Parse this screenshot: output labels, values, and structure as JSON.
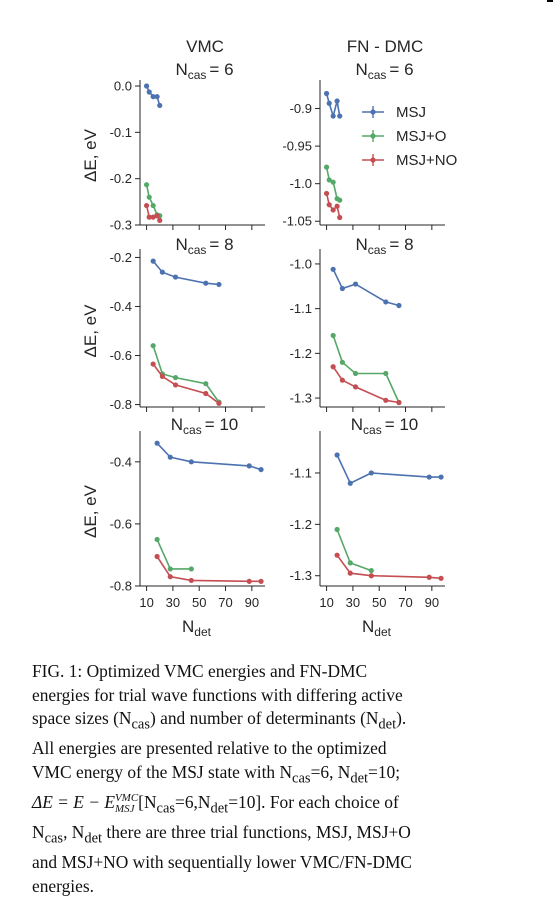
{
  "column_titles": {
    "left": "VMC",
    "right": "FN - DMC"
  },
  "legend": [
    {
      "label": "MSJ",
      "color": "#4c72b0"
    },
    {
      "label": "MSJ+O",
      "color": "#55a868"
    },
    {
      "label": "MSJ+NO",
      "color": "#c44e52"
    }
  ],
  "axis_text": {
    "ylabel": "ΔE, eV",
    "xlabel_main": "N",
    "xlabel_sub": "det",
    "ncas_main": "N",
    "ncas_sub": "cas",
    "ncas_values": [
      "= 6",
      "= 8",
      "= 10"
    ]
  },
  "chart_data": [
    {
      "type": "line",
      "title": "VMC N_cas = 6",
      "row": 0,
      "col": 0,
      "xlim": [
        5,
        100
      ],
      "ylim": [
        -0.3,
        0.0
      ],
      "yticks": [
        0.0,
        -0.1,
        -0.2,
        -0.3
      ],
      "ytick_labels": [
        "0.0",
        "-0.1",
        "-0.2",
        "-0.3"
      ],
      "series": [
        {
          "name": "MSJ",
          "color": "#4c72b0",
          "x": [
            10,
            12,
            15,
            18,
            20
          ],
          "y": [
            0.0,
            -0.013,
            -0.023,
            -0.023,
            -0.042
          ]
        },
        {
          "name": "MSJ+O",
          "color": "#55a868",
          "x": [
            10,
            12,
            15,
            18,
            20
          ],
          "y": [
            -0.213,
            -0.24,
            -0.258,
            -0.278,
            -0.28
          ]
        },
        {
          "name": "MSJ+NO",
          "color": "#c44e52",
          "x": [
            10,
            12,
            15,
            18,
            20
          ],
          "y": [
            -0.258,
            -0.283,
            -0.283,
            -0.28,
            -0.29
          ]
        }
      ]
    },
    {
      "type": "line",
      "title": "FN-DMC N_cas = 6",
      "row": 0,
      "col": 1,
      "xlim": [
        5,
        100
      ],
      "ylim": [
        -1.055,
        -0.87
      ],
      "yticks": [
        -0.9,
        -0.95,
        -1.0,
        -1.05
      ],
      "ytick_labels": [
        "-0.9",
        "-0.95",
        "-1.0",
        "-1.05"
      ],
      "series": [
        {
          "name": "MSJ",
          "color": "#4c72b0",
          "x": [
            10,
            12,
            15,
            18,
            20
          ],
          "y": [
            -0.88,
            -0.893,
            -0.91,
            -0.89,
            -0.91
          ]
        },
        {
          "name": "MSJ+O",
          "color": "#55a868",
          "x": [
            10,
            12,
            15,
            18,
            20
          ],
          "y": [
            -0.978,
            -0.995,
            -0.998,
            -1.02,
            -1.022
          ]
        },
        {
          "name": "MSJ+NO",
          "color": "#c44e52",
          "x": [
            10,
            12,
            15,
            18,
            20
          ],
          "y": [
            -1.013,
            -1.028,
            -1.035,
            -1.03,
            -1.045
          ]
        }
      ]
    },
    {
      "type": "line",
      "title": "VMC N_cas = 8",
      "row": 1,
      "col": 0,
      "xlim": [
        5,
        100
      ],
      "ylim": [
        -0.81,
        -0.19
      ],
      "yticks": [
        -0.2,
        -0.4,
        -0.6,
        -0.8
      ],
      "ytick_labels": [
        "-0.2",
        "-0.4",
        "-0.6",
        "-0.8"
      ],
      "series": [
        {
          "name": "MSJ",
          "color": "#4c72b0",
          "x": [
            15,
            22,
            32,
            55,
            65
          ],
          "y": [
            -0.215,
            -0.26,
            -0.28,
            -0.305,
            -0.31
          ]
        },
        {
          "name": "MSJ+O",
          "color": "#55a868",
          "x": [
            15,
            22,
            32,
            55,
            65
          ],
          "y": [
            -0.56,
            -0.675,
            -0.69,
            -0.715,
            -0.79
          ]
        },
        {
          "name": "MSJ+NO",
          "color": "#c44e52",
          "x": [
            15,
            22,
            32,
            55,
            65
          ],
          "y": [
            -0.635,
            -0.685,
            -0.72,
            -0.755,
            -0.795
          ]
        }
      ]
    },
    {
      "type": "line",
      "title": "FN-DMC N_cas = 8",
      "row": 1,
      "col": 1,
      "xlim": [
        5,
        100
      ],
      "ylim": [
        -1.32,
        -0.98
      ],
      "yticks": [
        -1.0,
        -1.1,
        -1.2,
        -1.3
      ],
      "ytick_labels": [
        "-1.0",
        "-1.1",
        "-1.2",
        "-1.3"
      ],
      "series": [
        {
          "name": "MSJ",
          "color": "#4c72b0",
          "x": [
            15,
            22,
            32,
            55,
            65
          ],
          "y": [
            -1.012,
            -1.055,
            -1.045,
            -1.085,
            -1.093
          ]
        },
        {
          "name": "MSJ+O",
          "color": "#55a868",
          "x": [
            15,
            22,
            32,
            55,
            65
          ],
          "y": [
            -1.16,
            -1.22,
            -1.245,
            -1.245,
            -1.31
          ]
        },
        {
          "name": "MSJ+NO",
          "color": "#c44e52",
          "x": [
            15,
            22,
            32,
            55,
            65
          ],
          "y": [
            -1.23,
            -1.26,
            -1.275,
            -1.305,
            -1.31
          ]
        }
      ]
    },
    {
      "type": "line",
      "title": "VMC N_cas = 10",
      "row": 2,
      "col": 0,
      "xlim": [
        5,
        100
      ],
      "ylim": [
        -0.8,
        -0.32
      ],
      "yticks": [
        -0.4,
        -0.6,
        -0.8
      ],
      "ytick_labels": [
        "-0.4",
        "-0.6",
        "-0.8"
      ],
      "series": [
        {
          "name": "MSJ",
          "color": "#4c72b0",
          "x": [
            18,
            28,
            44,
            88,
            97
          ],
          "y": [
            -0.34,
            -0.385,
            -0.4,
            -0.413,
            -0.425
          ]
        },
        {
          "name": "MSJ+O",
          "color": "#55a868",
          "x": [
            18,
            28,
            44
          ],
          "y": [
            -0.65,
            -0.745,
            -0.745
          ]
        },
        {
          "name": "MSJ+NO",
          "color": "#c44e52",
          "x": [
            18,
            28,
            44,
            88,
            97
          ],
          "y": [
            -0.705,
            -0.77,
            -0.782,
            -0.785,
            -0.785
          ]
        }
      ]
    },
    {
      "type": "line",
      "title": "FN-DMC N_cas = 10",
      "row": 2,
      "col": 1,
      "xlim": [
        5,
        100
      ],
      "ylim": [
        -1.32,
        -1.03
      ],
      "yticks": [
        -1.1,
        -1.2,
        -1.3
      ],
      "ytick_labels": [
        "-1.1",
        "-1.2",
        "-1.3"
      ],
      "series": [
        {
          "name": "MSJ",
          "color": "#4c72b0",
          "x": [
            18,
            28,
            44,
            88,
            97
          ],
          "y": [
            -1.065,
            -1.12,
            -1.1,
            -1.108,
            -1.108
          ]
        },
        {
          "name": "MSJ+O",
          "color": "#55a868",
          "x": [
            18,
            28,
            44
          ],
          "y": [
            -1.21,
            -1.275,
            -1.29
          ]
        },
        {
          "name": "MSJ+NO",
          "color": "#c44e52",
          "x": [
            18,
            28,
            44,
            88,
            97
          ],
          "y": [
            -1.26,
            -1.295,
            -1.3,
            -1.303,
            -1.305
          ]
        }
      ]
    }
  ],
  "xticks": [
    10,
    30,
    50,
    70,
    90
  ],
  "xtick_labels": [
    "10",
    "30",
    "50",
    "70",
    "90"
  ],
  "caption": {
    "line1": "FIG. 1:  Optimized VMC energies and FN-DMC",
    "line2": "energies for trial wave functions with differing active",
    "line3a": "space sizes (N",
    "line3b": "cas",
    "line3c": ") and number of determinants (N",
    "line3d": "det",
    "line3e": ").",
    "line4": "All energies are presented relative to the optimized",
    "line5a": "VMC energy of the MSJ state with N",
    "line5b": "cas",
    "line5c": "=6, N",
    "line5d": "det",
    "line5e": "=10;",
    "line6a": "ΔE = E − E",
    "line6b": "VMC",
    "line6c": "MSJ",
    "line6d": "[N",
    "line6e": "cas",
    "line6f": "=6,N",
    "line6g": "det",
    "line6h": "=10].  For each choice of",
    "line7a": "N",
    "line7b": "cas",
    "line7c": ", N",
    "line7d": "det",
    "line7e": " there are three trial functions, MSJ, MSJ+O",
    "line8": "and MSJ+NO with sequentially lower VMC/FN-DMC",
    "line9": "energies."
  }
}
